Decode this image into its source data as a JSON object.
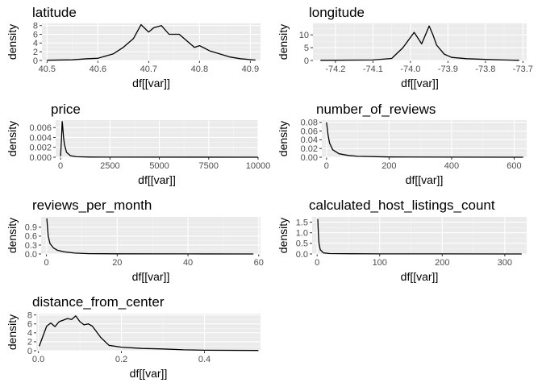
{
  "chart_data": [
    {
      "type": "line",
      "title": "latitude",
      "xlabel": "df[[var]]",
      "ylabel": "density",
      "xlim": [
        40.49,
        40.92
      ],
      "ylim": [
        0,
        8.5
      ],
      "x_ticks": [
        40.5,
        40.6,
        40.7,
        40.8,
        40.9
      ],
      "x_tick_labels": [
        "40.5",
        "40.6",
        "40.7",
        "40.8",
        "40.9"
      ],
      "y_ticks": [
        0,
        2,
        4,
        6,
        8
      ],
      "y_tick_labels": [
        "0",
        "2",
        "4",
        "6",
        "8"
      ],
      "x": [
        40.5,
        40.55,
        40.58,
        40.6,
        40.63,
        40.65,
        40.67,
        40.685,
        40.7,
        40.71,
        40.725,
        40.74,
        40.76,
        40.775,
        40.79,
        40.8,
        40.82,
        40.84,
        40.86,
        40.88,
        40.91
      ],
      "y": [
        0.05,
        0.15,
        0.4,
        0.5,
        1.5,
        3.0,
        5.0,
        8.2,
        6.5,
        7.5,
        8.0,
        6.0,
        6.0,
        4.5,
        3.0,
        3.4,
        2.2,
        1.5,
        0.8,
        0.4,
        0.1
      ]
    },
    {
      "type": "line",
      "title": "longitude",
      "xlabel": "df[[var]]",
      "ylabel": "density",
      "xlim": [
        -74.26,
        -73.69
      ],
      "ylim": [
        0,
        14.5
      ],
      "x_ticks": [
        -74.2,
        -74.1,
        -74.0,
        -73.9,
        -73.8,
        -73.7
      ],
      "x_tick_labels": [
        "-74.2",
        "-74.1",
        "-74.0",
        "-73.9",
        "-73.8",
        "-73.7"
      ],
      "y_ticks": [
        0,
        5,
        10
      ],
      "y_tick_labels": [
        "0",
        "5",
        "10"
      ],
      "x": [
        -74.24,
        -74.1,
        -74.05,
        -74.02,
        -73.99,
        -73.97,
        -73.96,
        -73.95,
        -73.94,
        -73.93,
        -73.91,
        -73.89,
        -73.85,
        -73.8,
        -73.75,
        -73.71
      ],
      "y": [
        0.05,
        0.2,
        0.8,
        5.0,
        11.0,
        6.5,
        10.0,
        13.5,
        10.0,
        6.0,
        2.5,
        1.2,
        0.7,
        0.4,
        0.2,
        0.05
      ]
    },
    {
      "type": "line",
      "title": "price",
      "xlabel": "df[[var]]",
      "ylabel": "density",
      "xlim": [
        -250,
        10000
      ],
      "ylim": [
        0,
        0.0075
      ],
      "x_ticks": [
        0,
        2500,
        5000,
        7500,
        10000
      ],
      "x_tick_labels": [
        "0",
        "2500",
        "5000",
        "7500",
        "10000"
      ],
      "y_ticks": [
        0,
        0.002,
        0.004,
        0.006
      ],
      "y_tick_labels": [
        "0.000",
        "0.002",
        "0.004",
        "0.006"
      ],
      "x": [
        0,
        50,
        80,
        100,
        150,
        200,
        300,
        500,
        800,
        1500,
        3000,
        10000
      ],
      "y": [
        0.0002,
        0.004,
        0.0072,
        0.0065,
        0.004,
        0.0025,
        0.001,
        0.0003,
        0.0001,
        3e-05,
        1e-05,
        0.0
      ]
    },
    {
      "type": "line",
      "title": "number_of_reviews",
      "xlabel": "df[[var]]",
      "ylabel": "density",
      "xlim": [
        -15,
        640
      ],
      "ylim": [
        0,
        0.085
      ],
      "x_ticks": [
        0,
        200,
        400,
        600
      ],
      "x_tick_labels": [
        "0",
        "200",
        "400",
        "600"
      ],
      "y_ticks": [
        0,
        0.02,
        0.04,
        0.06,
        0.08
      ],
      "y_tick_labels": [
        "0.00",
        "0.02",
        "0.04",
        "0.06",
        "0.08"
      ],
      "x": [
        0,
        5,
        10,
        20,
        40,
        70,
        100,
        200,
        400,
        629
      ],
      "y": [
        0.08,
        0.05,
        0.032,
        0.017,
        0.008,
        0.004,
        0.002,
        0.0005,
        0.0001,
        0.0
      ]
    },
    {
      "type": "line",
      "title": "reviews_per_month",
      "xlabel": "df[[var]]",
      "ylabel": "density",
      "xlim": [
        -1.5,
        60.5
      ],
      "ylim": [
        0,
        1.25
      ],
      "x_ticks": [
        0,
        20,
        40,
        60
      ],
      "x_tick_labels": [
        "0",
        "20",
        "40",
        "60"
      ],
      "y_ticks": [
        0,
        0.3,
        0.6,
        0.9
      ],
      "y_tick_labels": [
        "0.0",
        "0.3",
        "0.6",
        "0.9"
      ],
      "x": [
        0.1,
        0.5,
        1,
        2,
        3,
        5,
        8,
        12,
        20,
        40,
        58.5
      ],
      "y": [
        1.2,
        0.6,
        0.35,
        0.2,
        0.13,
        0.07,
        0.03,
        0.01,
        0.005,
        0.002,
        0.0
      ]
    },
    {
      "type": "line",
      "title": "calculated_host_listings_count",
      "xlabel": "df[[var]]",
      "ylabel": "density",
      "xlim": [
        -8,
        335
      ],
      "ylim": [
        0,
        1.75
      ],
      "x_ticks": [
        0,
        100,
        200,
        300
      ],
      "x_tick_labels": [
        "0",
        "100",
        "200",
        "300"
      ],
      "y_ticks": [
        0,
        0.5,
        1.0,
        1.5
      ],
      "y_tick_labels": [
        "0.0",
        "0.5",
        "1.0",
        "1.5"
      ],
      "x": [
        1,
        2,
        3,
        5,
        10,
        20,
        50,
        100,
        200,
        327
      ],
      "y": [
        1.65,
        0.9,
        0.5,
        0.2,
        0.05,
        0.02,
        0.01,
        0.005,
        0.002,
        0.0
      ]
    },
    {
      "type": "line",
      "title": "distance_from_center",
      "xlabel": "df[[var]]",
      "ylabel": "density",
      "xlim": [
        -0.005,
        0.535
      ],
      "ylim": [
        0,
        8.3
      ],
      "x_ticks": [
        0.0,
        0.2,
        0.4
      ],
      "x_tick_labels": [
        "0.0",
        "0.2",
        "0.4"
      ],
      "y_ticks": [
        0,
        2,
        4,
        6,
        8
      ],
      "y_tick_labels": [
        "0",
        "2",
        "4",
        "6",
        "8"
      ],
      "x": [
        0.002,
        0.01,
        0.02,
        0.03,
        0.04,
        0.05,
        0.07,
        0.08,
        0.09,
        0.1,
        0.11,
        0.12,
        0.13,
        0.15,
        0.17,
        0.2,
        0.25,
        0.3,
        0.35,
        0.4,
        0.53
      ],
      "y": [
        1.0,
        3.0,
        5.5,
        6.2,
        5.4,
        6.5,
        7.2,
        7.0,
        7.8,
        6.5,
        5.8,
        6.0,
        5.5,
        3.0,
        1.2,
        0.8,
        0.5,
        0.4,
        0.2,
        0.1,
        0.05
      ]
    }
  ]
}
